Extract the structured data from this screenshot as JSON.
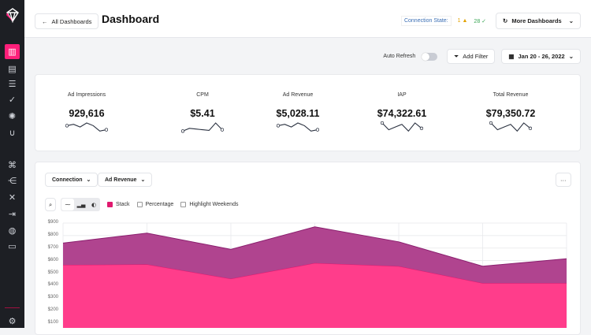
{
  "header": {
    "back_label": "All Dashboards",
    "title": "Dashboard",
    "connection_label": "Connection State:",
    "warning_count": "1",
    "ok_count": "28",
    "more_dashboards": "More Dashboards"
  },
  "toolbar": {
    "auto_refresh": "Auto Refresh",
    "auto_refresh_on": false,
    "add_filter": "Add Filter",
    "date_range": "Jan 20 - 26, 2022"
  },
  "kpis": [
    {
      "label": "Ad Impressions",
      "value": "929,616",
      "spark": [
        5,
        6,
        4,
        7,
        5,
        1,
        2
      ]
    },
    {
      "label": "CPM",
      "value": "$5.41",
      "spark": [
        1,
        3,
        2.5,
        2,
        1.5,
        7,
        2
      ]
    },
    {
      "label": "Ad Revenue",
      "value": "$5,028.11",
      "spark": [
        5,
        6,
        4,
        7,
        5,
        1,
        2
      ]
    },
    {
      "label": "IAP",
      "value": "$74,322.61",
      "spark": [
        7,
        2,
        4,
        6,
        1,
        7,
        3
      ]
    },
    {
      "label": "Total Revenue",
      "value": "$79,350.72",
      "spark": [
        7,
        2,
        4,
        6,
        1,
        7,
        3
      ]
    }
  ],
  "chart_controls": {
    "dimension": "Connection",
    "metric": "Ad Revenue",
    "more": "···",
    "stack": "Stack",
    "stack_on": true,
    "percentage": "Percentage",
    "percentage_on": false,
    "highlight_weekends": "Highlight Weekends",
    "highlight_on": false
  },
  "colors": {
    "accent": "#ff1f7a",
    "series_top": "#b0448f",
    "series_bottom": "#ff3d8b"
  },
  "chart_data": {
    "type": "area",
    "stacked": true,
    "grid": true,
    "y_ticks": [
      "$900",
      "$800",
      "$700",
      "$600",
      "$500",
      "$400",
      "$300",
      "$200",
      "$100"
    ],
    "ylim": [
      0,
      900
    ],
    "series": [
      {
        "values": [
          565,
          570,
          455,
          580,
          555,
          420,
          420
        ],
        "color": "#ff3d8b"
      },
      {
        "values": [
          175,
          250,
          235,
          290,
          195,
          135,
          195
        ],
        "color": "#b0448f"
      }
    ]
  }
}
